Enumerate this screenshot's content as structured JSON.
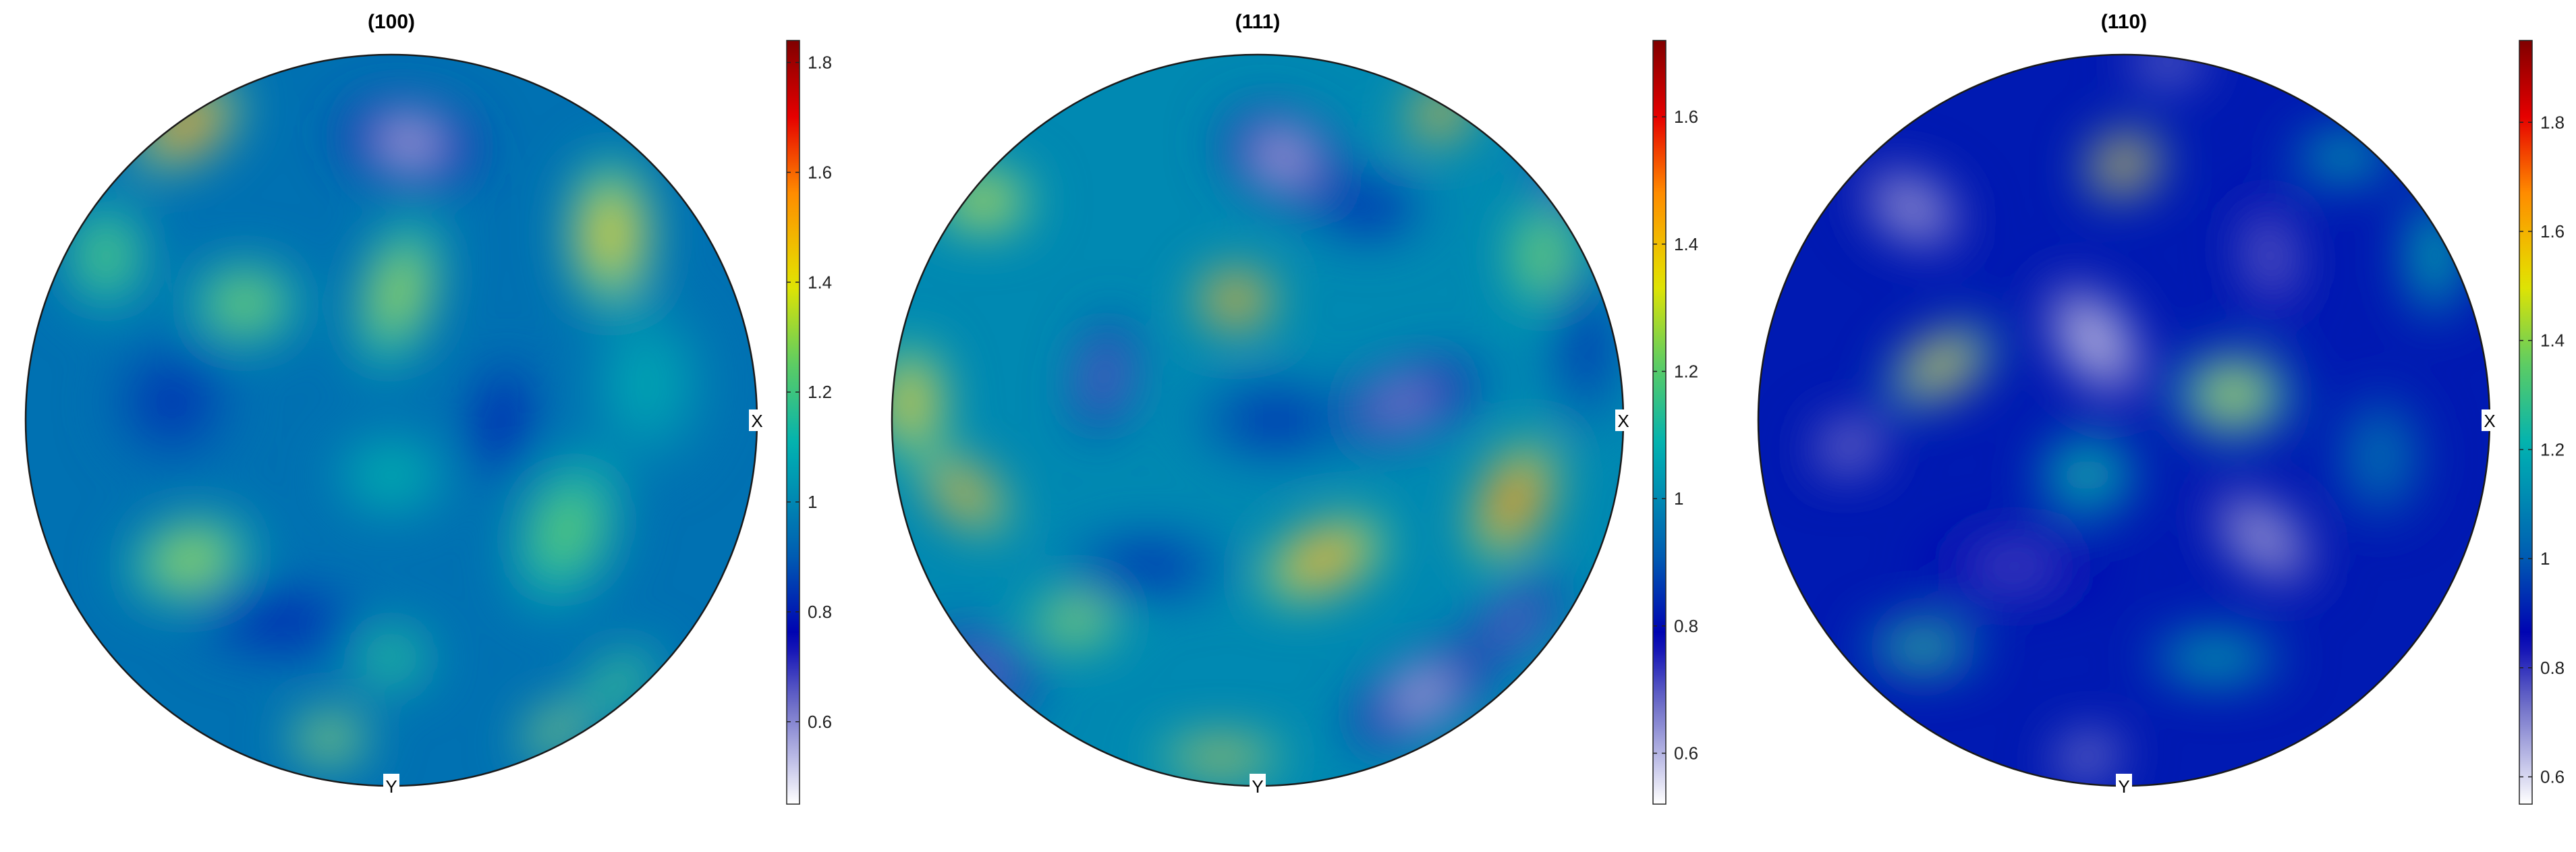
{
  "chart_data": [
    {
      "type": "heatmap",
      "title": "(100)",
      "axis_labels": {
        "x": "X",
        "y": "Y"
      },
      "colorbar": {
        "ticks": [
          0.6,
          0.8,
          1,
          1.2,
          1.4,
          1.6,
          1.8
        ],
        "tick_labels": [
          "0.6",
          "0.8",
          "1",
          "1.2",
          "1.4",
          "1.6",
          "1.8"
        ],
        "range": [
          0.45,
          1.84
        ]
      },
      "background_value": 0.95,
      "blobs": [
        {
          "u": -0.56,
          "v": 0.81,
          "value": 1.82,
          "sx": 0.14,
          "sy": 0.08,
          "angle": -35
        },
        {
          "u": 0.05,
          "v": 0.76,
          "value": 0.45,
          "sx": 0.16,
          "sy": 0.09,
          "angle": 10
        },
        {
          "u": 0.6,
          "v": 0.51,
          "value": 1.55,
          "sx": 0.1,
          "sy": 0.19,
          "angle": 0
        },
        {
          "u": -0.4,
          "v": 0.32,
          "value": 1.35,
          "sx": 0.14,
          "sy": 0.1,
          "angle": 0
        },
        {
          "u": 0.02,
          "v": 0.35,
          "value": 1.4,
          "sx": 0.09,
          "sy": 0.2,
          "angle": 15
        },
        {
          "u": -0.78,
          "v": 0.45,
          "value": 1.3,
          "sx": 0.1,
          "sy": 0.14,
          "angle": 0
        },
        {
          "u": 0.3,
          "v": 0.0,
          "value": 0.7,
          "sx": 0.07,
          "sy": 0.14,
          "angle": 10
        },
        {
          "u": -0.6,
          "v": 0.05,
          "value": 0.8,
          "sx": 0.14,
          "sy": 0.14,
          "angle": 0
        },
        {
          "u": -0.55,
          "v": -0.38,
          "value": 1.4,
          "sx": 0.16,
          "sy": 0.1,
          "angle": -15
        },
        {
          "u": 0.48,
          "v": -0.3,
          "value": 1.3,
          "sx": 0.12,
          "sy": 0.2,
          "angle": 20
        },
        {
          "u": 0.0,
          "v": -0.15,
          "value": 1.15,
          "sx": 0.14,
          "sy": 0.1,
          "angle": 0
        },
        {
          "u": -0.3,
          "v": -0.55,
          "value": 0.75,
          "sx": 0.2,
          "sy": 0.08,
          "angle": 0
        },
        {
          "u": 0.0,
          "v": -0.65,
          "value": 1.25,
          "sx": 0.1,
          "sy": 0.08,
          "angle": 0
        },
        {
          "u": -0.17,
          "v": -0.87,
          "value": 1.45,
          "sx": 0.1,
          "sy": 0.06,
          "angle": 0
        },
        {
          "u": 0.45,
          "v": -0.85,
          "value": 1.45,
          "sx": 0.1,
          "sy": 0.05,
          "angle": -35
        },
        {
          "u": 0.62,
          "v": -0.72,
          "value": 1.3,
          "sx": 0.12,
          "sy": 0.06,
          "angle": -40
        },
        {
          "u": 0.7,
          "v": 0.1,
          "value": 1.1,
          "sx": 0.14,
          "sy": 0.2,
          "angle": 0
        }
      ]
    },
    {
      "type": "heatmap",
      "title": "(111)",
      "axis_labels": {
        "x": "X",
        "y": "Y"
      },
      "colorbar": {
        "ticks": [
          0.6,
          0.8,
          1,
          1.2,
          1.4,
          1.6
        ],
        "tick_labels": [
          "0.6",
          "0.8",
          "1",
          "1.2",
          "1.4",
          "1.6"
        ],
        "range": [
          0.52,
          1.72
        ]
      },
      "background_value": 1.0,
      "blobs": [
        {
          "u": 0.07,
          "v": 0.72,
          "value": 0.52,
          "sx": 0.15,
          "sy": 0.1,
          "angle": 25
        },
        {
          "u": 0.5,
          "v": 0.84,
          "value": 1.7,
          "sx": 0.08,
          "sy": 0.06,
          "angle": -35
        },
        {
          "u": 0.85,
          "v": 0.65,
          "value": 0.6,
          "sx": 0.1,
          "sy": 0.08,
          "angle": -40
        },
        {
          "u": 0.78,
          "v": 0.45,
          "value": 1.3,
          "sx": 0.08,
          "sy": 0.14,
          "angle": 0
        },
        {
          "u": -0.06,
          "v": 0.33,
          "value": 1.72,
          "sx": 0.09,
          "sy": 0.07,
          "angle": 0
        },
        {
          "u": -0.42,
          "v": 0.12,
          "value": 0.6,
          "sx": 0.06,
          "sy": 0.14,
          "angle": 10
        },
        {
          "u": 0.4,
          "v": 0.05,
          "value": 0.58,
          "sx": 0.2,
          "sy": 0.08,
          "angle": -20
        },
        {
          "u": 0.7,
          "v": -0.22,
          "value": 1.72,
          "sx": 0.08,
          "sy": 0.15,
          "angle": 25
        },
        {
          "u": 0.18,
          "v": -0.38,
          "value": 1.6,
          "sx": 0.16,
          "sy": 0.08,
          "angle": -25
        },
        {
          "u": -0.8,
          "v": -0.2,
          "value": 1.65,
          "sx": 0.12,
          "sy": 0.06,
          "angle": 40
        },
        {
          "u": -0.95,
          "v": 0.05,
          "value": 1.5,
          "sx": 0.08,
          "sy": 0.14,
          "angle": 0
        },
        {
          "u": -0.75,
          "v": 0.6,
          "value": 1.4,
          "sx": 0.12,
          "sy": 0.08,
          "angle": 0
        },
        {
          "u": 0.45,
          "v": -0.75,
          "value": 0.52,
          "sx": 0.2,
          "sy": 0.08,
          "angle": -30
        },
        {
          "u": 0.7,
          "v": -0.55,
          "value": 0.6,
          "sx": 0.15,
          "sy": 0.06,
          "angle": -40
        },
        {
          "u": -0.75,
          "v": -0.68,
          "value": 0.6,
          "sx": 0.15,
          "sy": 0.07,
          "angle": 30
        },
        {
          "u": -0.1,
          "v": -0.92,
          "value": 1.5,
          "sx": 0.16,
          "sy": 0.04,
          "angle": 0
        },
        {
          "u": -0.3,
          "v": -0.4,
          "value": 0.78,
          "sx": 0.2,
          "sy": 0.08,
          "angle": 0
        },
        {
          "u": -0.5,
          "v": -0.55,
          "value": 1.35,
          "sx": 0.12,
          "sy": 0.06,
          "angle": 0
        },
        {
          "u": 0.05,
          "v": 0.0,
          "value": 0.8,
          "sx": 0.2,
          "sy": 0.1,
          "angle": 0
        },
        {
          "u": 0.9,
          "v": 0.2,
          "value": 0.8,
          "sx": 0.08,
          "sy": 0.2,
          "angle": 0
        },
        {
          "u": 0.3,
          "v": 0.58,
          "value": 0.75,
          "sx": 0.14,
          "sy": 0.08,
          "angle": 0
        }
      ]
    },
    {
      "type": "heatmap",
      "title": "(110)",
      "axis_labels": {
        "x": "X",
        "y": "Y"
      },
      "colorbar": {
        "ticks": [
          0.6,
          0.8,
          1,
          1.2,
          1.4,
          1.6,
          1.8
        ],
        "tick_labels": [
          "0.6",
          "0.8",
          "1",
          "1.2",
          "1.4",
          "1.6",
          "1.8"
        ],
        "range": [
          0.55,
          1.95
        ]
      },
      "background_value": 0.9,
      "blobs": [
        {
          "u": 0.0,
          "v": 0.7,
          "value": 1.95,
          "sx": 0.09,
          "sy": 0.07,
          "angle": -25
        },
        {
          "u": -0.58,
          "v": 0.58,
          "value": 0.6,
          "sx": 0.14,
          "sy": 0.08,
          "angle": 30
        },
        {
          "u": -0.08,
          "v": 0.22,
          "value": 0.55,
          "sx": 0.09,
          "sy": 0.17,
          "angle": -35
        },
        {
          "u": 0.4,
          "v": 0.45,
          "value": 0.7,
          "sx": 0.07,
          "sy": 0.15,
          "angle": -10
        },
        {
          "u": -0.5,
          "v": 0.15,
          "value": 1.75,
          "sx": 0.14,
          "sy": 0.07,
          "angle": -30
        },
        {
          "u": 0.3,
          "v": 0.07,
          "value": 1.6,
          "sx": 0.14,
          "sy": 0.1,
          "angle": 0
        },
        {
          "u": 0.38,
          "v": -0.32,
          "value": 0.6,
          "sx": 0.16,
          "sy": 0.08,
          "angle": 40
        },
        {
          "u": -0.75,
          "v": -0.07,
          "value": 0.65,
          "sx": 0.1,
          "sy": 0.07,
          "angle": -20
        },
        {
          "u": -0.55,
          "v": -0.62,
          "value": 1.4,
          "sx": 0.14,
          "sy": 0.06,
          "angle": 0
        },
        {
          "u": 0.25,
          "v": -0.65,
          "value": 1.3,
          "sx": 0.16,
          "sy": 0.06,
          "angle": 0
        },
        {
          "u": -0.1,
          "v": -0.92,
          "value": 0.6,
          "sx": 0.09,
          "sy": 0.05,
          "angle": -15
        },
        {
          "u": 0.6,
          "v": 0.72,
          "value": 1.3,
          "sx": 0.12,
          "sy": 0.06,
          "angle": 0
        },
        {
          "u": 0.85,
          "v": 0.45,
          "value": 1.3,
          "sx": 0.07,
          "sy": 0.15,
          "angle": 0
        },
        {
          "u": -0.1,
          "v": -0.15,
          "value": 1.3,
          "sx": 0.12,
          "sy": 0.1,
          "angle": 0
        },
        {
          "u": -0.3,
          "v": -0.4,
          "value": 0.75,
          "sx": 0.2,
          "sy": 0.08,
          "angle": 0
        },
        {
          "u": 0.12,
          "v": 0.98,
          "value": 0.6,
          "sx": 0.1,
          "sy": 0.04,
          "angle": 0
        },
        {
          "u": 0.7,
          "v": -0.1,
          "value": 1.1,
          "sx": 0.1,
          "sy": 0.15,
          "angle": 0
        }
      ]
    }
  ]
}
